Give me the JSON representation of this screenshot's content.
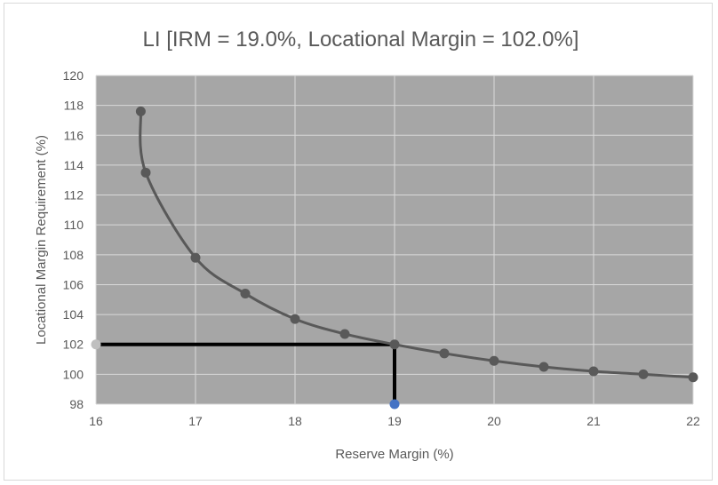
{
  "chart_data": {
    "type": "scatter",
    "title": "LI [IRM = 19.0%, Locational Margin = 102.0%]",
    "xlabel": "Reserve Margin (%)",
    "ylabel": "Locational Margin Requirement (%)",
    "xlim": [
      16,
      22
    ],
    "ylim": [
      98,
      120
    ],
    "x_ticks": [
      "16",
      "17",
      "18",
      "19",
      "20",
      "21",
      "22"
    ],
    "y_ticks": [
      "98",
      "100",
      "102",
      "104",
      "106",
      "108",
      "110",
      "112",
      "114",
      "116",
      "118",
      "120"
    ],
    "grid": true,
    "plot_background": "#a6a6a6",
    "series": [
      {
        "color": "#595959",
        "line": "smooth",
        "points": [
          {
            "x": 16.45,
            "y": 117.6
          },
          {
            "x": 16.5,
            "y": 113.5
          },
          {
            "x": 17.0,
            "y": 107.8
          },
          {
            "x": 17.5,
            "y": 105.4
          },
          {
            "x": 18.0,
            "y": 103.7
          },
          {
            "x": 18.5,
            "y": 102.7
          },
          {
            "x": 19.0,
            "y": 102.0
          },
          {
            "x": 19.5,
            "y": 101.4
          },
          {
            "x": 20.0,
            "y": 100.9
          },
          {
            "x": 20.5,
            "y": 100.5
          },
          {
            "x": 21.0,
            "y": 100.2
          },
          {
            "x": 21.5,
            "y": 100.0
          },
          {
            "x": 22.0,
            "y": 99.8
          }
        ]
      }
    ],
    "markers": [
      {
        "x": 16.0,
        "y": 102.0,
        "color": "#bfbfbf"
      },
      {
        "x": 19.0,
        "y": 98.0,
        "color": "#4472c4"
      }
    ],
    "reference_lines": [
      {
        "from": {
          "x": 16.0,
          "y": 102.0
        },
        "to": {
          "x": 19.0,
          "y": 102.0
        },
        "color": "#000000"
      },
      {
        "from": {
          "x": 19.0,
          "y": 102.0
        },
        "to": {
          "x": 19.0,
          "y": 98.0
        },
        "color": "#000000"
      }
    ]
  }
}
